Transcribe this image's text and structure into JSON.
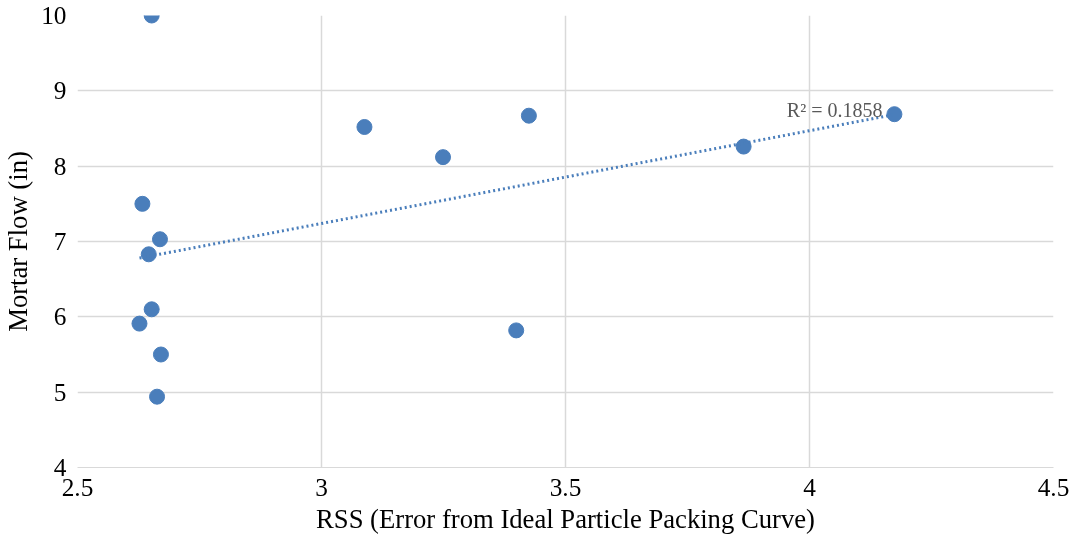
{
  "chart_data": {
    "type": "scatter",
    "xlabel": "RSS (Error from Ideal Particle Packing Curve)",
    "ylabel": "Mortar Flow (in)",
    "xlim": [
      2.5,
      4.5
    ],
    "xticks": [
      2.5,
      3,
      3.5,
      4,
      4.5
    ],
    "ylim": [
      4,
      10
    ],
    "yticks": [
      4,
      5,
      6,
      7,
      8,
      9,
      10
    ],
    "grid": true,
    "series": [
      {
        "color": "#4a7ebb",
        "marker": "circle",
        "x": [
          2.652,
          3.088,
          3.425,
          3.249,
          3.865,
          4.174,
          2.633,
          2.669,
          2.646,
          2.652,
          2.627,
          2.671,
          2.663,
          3.399
        ],
        "values": [
          10,
          8.52,
          8.67,
          8.12,
          8.26,
          8.69,
          7.5,
          7.03,
          6.83,
          6.1,
          5.91,
          5.5,
          4.94,
          5.82
        ]
      },
      {
        "type": "line",
        "color": "#4a7ebb",
        "line_style": "dotted",
        "marker": "none",
        "x": [
          2.627,
          4.17
        ],
        "values": [
          6.78,
          8.68
        ]
      }
    ],
    "annotations": [
      "R² = 0.1858"
    ]
  }
}
